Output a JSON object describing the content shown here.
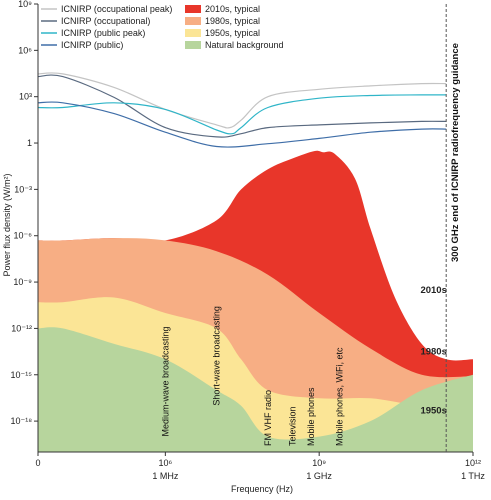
{
  "chart_data": {
    "type": "area",
    "xlabel": "Frequency (Hz)",
    "ylabel": "Power flux density (W/m²)",
    "xlim": [
      0,
      1000000000000.0
    ],
    "ylim": [
      1e-20,
      1000000000.0
    ],
    "y_scale": "log",
    "x_scale": "log",
    "x_ticks": [
      {
        "value": 0,
        "label": "0",
        "sublabel": ""
      },
      {
        "value": 1000000.0,
        "label": "10⁶",
        "sublabel": "1 MHz"
      },
      {
        "value": 1000000000.0,
        "label": "10⁹",
        "sublabel": "1 GHz"
      },
      {
        "value": 1000000000000.0,
        "label": "10¹²",
        "sublabel": "1 THz"
      }
    ],
    "y_ticks": [
      {
        "value": 1000000000.0,
        "label": "10⁹"
      },
      {
        "value": 1000000.0,
        "label": "10⁶"
      },
      {
        "value": 1000.0,
        "label": "10³"
      },
      {
        "value": 1,
        "label": "1"
      },
      {
        "value": 0.001,
        "label": "10⁻³"
      },
      {
        "value": 1e-06,
        "label": "10⁻⁶"
      },
      {
        "value": 1e-09,
        "label": "10⁻⁹"
      },
      {
        "value": 1e-12,
        "label": "10⁻¹²"
      },
      {
        "value": 1e-15,
        "label": "10⁻¹⁵"
      },
      {
        "value": 1e-18,
        "label": "10⁻¹⁸"
      }
    ],
    "legend": [
      {
        "name": "ICNIRP (occupational peak)",
        "kind": "line",
        "color": "#c4c4c4"
      },
      {
        "name": "ICNIRP (occupational)",
        "kind": "line",
        "color": "#5a6a80"
      },
      {
        "name": "ICNIRP (public peak)",
        "kind": "line",
        "color": "#2fb5c8"
      },
      {
        "name": "ICNIRP (public)",
        "kind": "line",
        "color": "#3f6ea8"
      },
      {
        "name": "2010s, typical",
        "kind": "area",
        "color": "#e8362a"
      },
      {
        "name": "1980s, typical",
        "kind": "area",
        "color": "#f7ae84"
      },
      {
        "name": "1950s, typical",
        "kind": "area",
        "color": "#fbe596"
      },
      {
        "name": "Natural background",
        "kind": "area",
        "color": "#b7d59d"
      }
    ],
    "lines": [
      {
        "name": "ICNIRP (occupational peak)",
        "color": "#c4c4c4",
        "points": [
          [
            10000.0,
            30000.0
          ],
          [
            100000.0,
            4000.0
          ],
          [
            1000000.0,
            150
          ],
          [
            10000000.0,
            15
          ],
          [
            18000000.0,
            10
          ],
          [
            30000000.0,
            30
          ],
          [
            100000000.0,
            1000
          ],
          [
            1000000000.0,
            3000
          ],
          [
            10000000000.0,
            5000
          ],
          [
            100000000000.0,
            7000
          ],
          [
            300000000000.0,
            7000
          ]
        ]
      },
      {
        "name": "ICNIRP (occupational)",
        "color": "#5a6a80",
        "points": [
          [
            10000.0,
            20000.0
          ],
          [
            100000.0,
            900
          ],
          [
            1000000.0,
            10
          ],
          [
            10000000.0,
            2.5
          ],
          [
            30000000.0,
            4
          ],
          [
            100000000.0,
            10
          ],
          [
            1000000000.0,
            15
          ],
          [
            10000000000.0,
            20
          ],
          [
            100000000000.0,
            25
          ],
          [
            300000000000.0,
            25
          ]
        ]
      },
      {
        "name": "ICNIRP (public peak)",
        "color": "#2fb5c8",
        "points": [
          [
            10000.0,
            200
          ],
          [
            100000.0,
            400
          ],
          [
            1000000.0,
            150
          ],
          [
            10000000.0,
            7
          ],
          [
            20000000.0,
            4
          ],
          [
            30000000.0,
            10
          ],
          [
            100000000.0,
            200
          ],
          [
            1000000000.0,
            800
          ],
          [
            10000000000.0,
            1200
          ],
          [
            100000000000.0,
            1300
          ],
          [
            300000000000.0,
            1300
          ]
        ]
      },
      {
        "name": "ICNIRP (public)",
        "color": "#3f6ea8",
        "points": [
          [
            10000.0,
            400
          ],
          [
            100000.0,
            80
          ],
          [
            1000000.0,
            5
          ],
          [
            10000000.0,
            0.6
          ],
          [
            100000000.0,
            0.9
          ],
          [
            1000000000.0,
            2
          ],
          [
            10000000000.0,
            5
          ],
          [
            100000000000.0,
            8
          ],
          [
            300000000000.0,
            8
          ]
        ]
      }
    ],
    "areas": [
      {
        "name": "2010s, typical",
        "color": "#e8362a",
        "points": [
          [
            10000.0,
            5e-07
          ],
          [
            100000.0,
            7e-07
          ],
          [
            1000000.0,
            5e-07
          ],
          [
            10000000.0,
            1e-05
          ],
          [
            30000000.0,
            0.001
          ],
          [
            100000000.0,
            0.02
          ],
          [
            300000000.0,
            0.1
          ],
          [
            800000000.0,
            0.3
          ],
          [
            1200000000.0,
            0.25
          ],
          [
            2000000000.0,
            0.2
          ],
          [
            5000000000.0,
            0.005
          ],
          [
            10000000000.0,
            3e-06
          ],
          [
            30000000000.0,
            1e-10
          ],
          [
            100000000000.0,
            1e-13
          ],
          [
            300000000000.0,
            1e-14
          ],
          [
            1000000000000.0,
            1e-14
          ]
        ]
      },
      {
        "name": "1980s, typical",
        "color": "#f7ae84",
        "points": [
          [
            10000.0,
            5e-07
          ],
          [
            100000.0,
            7e-07
          ],
          [
            1000000.0,
            5e-07
          ],
          [
            10000000.0,
            1e-07
          ],
          [
            100000000.0,
            3e-09
          ],
          [
            1000000000.0,
            1e-11
          ],
          [
            10000000000.0,
            5e-14
          ],
          [
            100000000000.0,
            1e-15
          ],
          [
            1000000000000.0,
            8e-16
          ]
        ]
      },
      {
        "name": "1950s, typical",
        "color": "#fbe596",
        "points": [
          [
            10000.0,
            5e-11
          ],
          [
            100000.0,
            1e-10
          ],
          [
            1000000.0,
            1e-11
          ],
          [
            10000000.0,
            1e-12
          ],
          [
            30000000.0,
            1e-14
          ],
          [
            100000000.0,
            1e-16
          ],
          [
            1000000000.0,
            3e-17
          ],
          [
            10000000000.0,
            3e-17
          ],
          [
            100000000000.0,
            1e-17
          ],
          [
            1000000000000.0,
            1e-17
          ]
        ]
      },
      {
        "name": "Natural background",
        "color": "#b7d59d",
        "points": [
          [
            10000.0,
            1e-12
          ],
          [
            100000.0,
            1e-13
          ],
          [
            1000000.0,
            1e-14
          ],
          [
            10000000.0,
            1e-16
          ],
          [
            30000000.0,
            1e-17
          ],
          [
            100000000.0,
            1e-19
          ],
          [
            1000000000.0,
            1e-19
          ],
          [
            10000000000.0,
            1e-18
          ],
          [
            100000000000.0,
            1e-16
          ],
          [
            1000000000000.0,
            1e-15
          ]
        ]
      }
    ],
    "annotations": [
      {
        "text": "Medium-wave broadcasting",
        "x": 1000000.0,
        "y": 1e-19
      },
      {
        "text": "Short-wave broadcasting",
        "x": 10000000.0,
        "y": 1e-17
      },
      {
        "text": "FM VHF radio",
        "x": 100000000.0,
        "y": 1e-20
      },
      {
        "text": "Television",
        "x": 300000000.0,
        "y": 1e-20
      },
      {
        "text": "Mobile phones",
        "x": 700000000.0,
        "y": 1e-20
      },
      {
        "text": "Mobile phones, WiFi, etc",
        "x": 2500000000.0,
        "y": 1e-20
      }
    ],
    "area_labels": [
      {
        "text": "2010s",
        "x": 10000000000.0,
        "y": 2e-10
      },
      {
        "text": "1980s",
        "x": 10000000000.0,
        "y": 2e-14
      },
      {
        "text": "1950s",
        "x": 10000000000.0,
        "y": 3e-18
      }
    ],
    "cutoff": {
      "x": 300000000000.0,
      "text": "300 GHz end of ICNIRP radiofrequency guidance"
    },
    "grid": false
  }
}
